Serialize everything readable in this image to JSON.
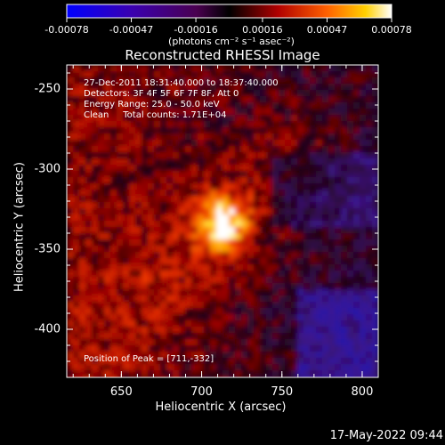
{
  "chart_data": {
    "type": "heatmap",
    "title": "Reconstructed RHESSI Image",
    "xlabel": "Heliocentric X (arcsec)",
    "ylabel": "Heliocentric Y (arcsec)",
    "x_ticks": [
      "650",
      "700",
      "750",
      "800"
    ],
    "x_tick_values": [
      650,
      700,
      750,
      800
    ],
    "y_ticks": [
      "-250",
      "-300",
      "-350",
      "-400"
    ],
    "y_tick_values": [
      -250,
      -300,
      -350,
      -400
    ],
    "xlim": [
      616,
      810
    ],
    "ylim": [
      -430,
      -235
    ],
    "colorbar": {
      "tick_labels": [
        "-0.00078",
        "-0.00047",
        "-0.00016",
        "0.00016",
        "0.00047",
        "0.00078"
      ],
      "tick_values": [
        -0.00078,
        -0.00047,
        -0.00016,
        0.00016,
        0.00047,
        0.00078
      ],
      "units": "(photons cm⁻² s⁻¹ asec⁻²)",
      "range": [
        -0.00078,
        0.00078
      ]
    },
    "annotations": [
      "27-Dec-2011 18:31:40.000 to 18:37:40.000",
      "Detectors: 3F 4F 5F 6F 7F 8F, Att 0",
      "Energy Range: 25.0 - 50.0 keV",
      "Clean     Total counts: 1.71E+04"
    ],
    "peak_label": "Position of Peak = [711,-332]",
    "peak_position": [
      711,
      -332
    ]
  },
  "footer": {
    "timestamp": "17-May-2022 09:44"
  }
}
